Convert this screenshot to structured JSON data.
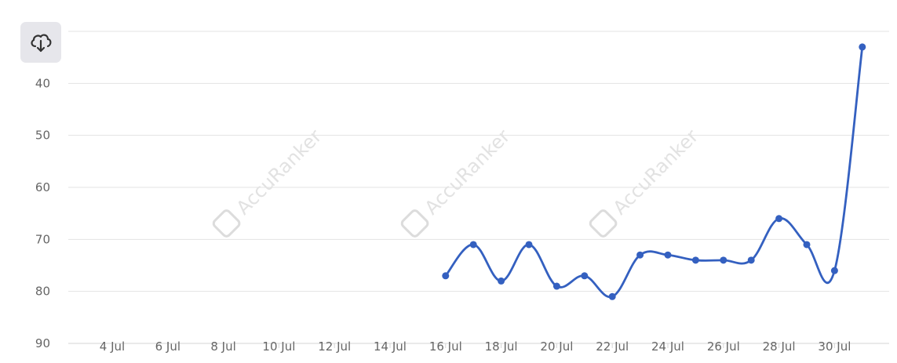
{
  "toolbar": {
    "download_icon": "cloud-download-icon"
  },
  "watermark": "AccuRanker",
  "chart_data": {
    "type": "line",
    "y_reversed": true,
    "ylim": [
      30,
      90
    ],
    "yticks": [
      30,
      40,
      50,
      60,
      70,
      80,
      90
    ],
    "xlim": [
      "2024-07-02",
      "2024-07-31"
    ],
    "xticks": [
      {
        "date": "2024-07-04",
        "label": "4 Jul"
      },
      {
        "date": "2024-07-06",
        "label": "6 Jul"
      },
      {
        "date": "2024-07-08",
        "label": "8 Jul"
      },
      {
        "date": "2024-07-10",
        "label": "10 Jul"
      },
      {
        "date": "2024-07-12",
        "label": "12 Jul"
      },
      {
        "date": "2024-07-14",
        "label": "14 Jul"
      },
      {
        "date": "2024-07-16",
        "label": "16 Jul"
      },
      {
        "date": "2024-07-18",
        "label": "18 Jul"
      },
      {
        "date": "2024-07-20",
        "label": "20 Jul"
      },
      {
        "date": "2024-07-22",
        "label": "22 Jul"
      },
      {
        "date": "2024-07-24",
        "label": "24 Jul"
      },
      {
        "date": "2024-07-26",
        "label": "26 Jul"
      },
      {
        "date": "2024-07-28",
        "label": "28 Jul"
      },
      {
        "date": "2024-07-30",
        "label": "30 Jul"
      }
    ],
    "series": [
      {
        "color": "#3460c0",
        "points": [
          {
            "x": "2024-07-16",
            "y": 77
          },
          {
            "x": "2024-07-17",
            "y": 71
          },
          {
            "x": "2024-07-18",
            "y": 78
          },
          {
            "x": "2024-07-19",
            "y": 71
          },
          {
            "x": "2024-07-20",
            "y": 79
          },
          {
            "x": "2024-07-21",
            "y": 77
          },
          {
            "x": "2024-07-22",
            "y": 81
          },
          {
            "x": "2024-07-23",
            "y": 73
          },
          {
            "x": "2024-07-24",
            "y": 73
          },
          {
            "x": "2024-07-25",
            "y": 74
          },
          {
            "x": "2024-07-26",
            "y": 74
          },
          {
            "x": "2024-07-27",
            "y": 74
          },
          {
            "x": "2024-07-28",
            "y": 66
          },
          {
            "x": "2024-07-29",
            "y": 71
          },
          {
            "x": "2024-07-30",
            "y": 76
          },
          {
            "x": "2024-07-31",
            "y": 33
          }
        ]
      }
    ],
    "grid": true,
    "legend": "none"
  }
}
